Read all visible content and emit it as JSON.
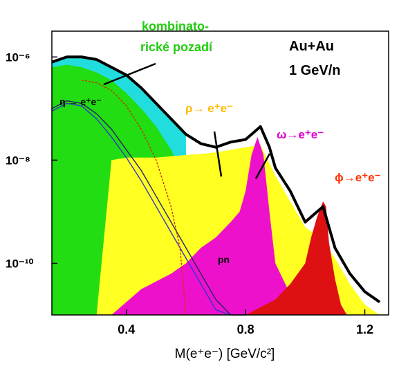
{
  "chart_data": {
    "type": "area",
    "xlabel": "M(e⁺e⁻) [GeV/c²]",
    "xlim": [
      0.15,
      1.28
    ],
    "ylim_log10": [
      -11,
      -5.5
    ],
    "x_ticks": [
      {
        "value": 0.4,
        "label": "0.4"
      },
      {
        "value": 0.8,
        "label": "0.8"
      },
      {
        "value": 1.2,
        "label": "1.2"
      }
    ],
    "y_ticks": [
      {
        "value": -6,
        "label": "10⁻⁶"
      },
      {
        "value": -8,
        "label": "10⁻⁸"
      },
      {
        "value": -10,
        "label": "10⁻¹⁰"
      }
    ],
    "annotations": {
      "background_l1": "kombinato-",
      "background_l2": "rické pozadí",
      "system_l1": "Au+Au",
      "system_l2": "1 GeV/n",
      "eta": "η → e⁺e⁻",
      "rho": "ρ→ e⁺e⁻",
      "omega": "ω→e⁺e⁻",
      "phi": "ϕ→e⁺e⁻",
      "pn": "pn"
    },
    "colors": {
      "combinatorial": "#22dd11",
      "cyan_band": "#22dddd",
      "rho": "#ffff22",
      "omega": "#ee11cc",
      "phi": "#dd1111",
      "pn": "#ff9933",
      "total": "#000000",
      "background_label": "#22cc11",
      "rho_label": "#ffbb00",
      "omega_label": "#dd00cc",
      "phi_label": "#ff3300"
    },
    "series": [
      {
        "key": "total",
        "x": [
          0.15,
          0.2,
          0.25,
          0.3,
          0.35,
          0.4,
          0.45,
          0.5,
          0.55,
          0.6,
          0.65,
          0.7,
          0.75,
          0.8,
          0.83,
          0.85,
          0.88,
          0.9,
          0.95,
          1.0,
          1.04,
          1.06,
          1.08,
          1.1,
          1.15,
          1.2,
          1.25
        ],
        "log10y": [
          -6.1,
          -6.0,
          -6.0,
          -6.05,
          -6.2,
          -6.35,
          -6.6,
          -6.9,
          -7.2,
          -7.5,
          -7.68,
          -7.75,
          -7.65,
          -7.6,
          -7.45,
          -7.35,
          -7.75,
          -8.15,
          -8.6,
          -9.2,
          -9.0,
          -8.9,
          -9.3,
          -9.7,
          -10.2,
          -10.55,
          -10.75
        ]
      },
      {
        "key": "combinatorial",
        "x": [
          0.15,
          0.2,
          0.25,
          0.3,
          0.35,
          0.4,
          0.45,
          0.5,
          0.55,
          0.6,
          0.65,
          0.7,
          0.75,
          0.8,
          0.85,
          0.9,
          1.0,
          1.1,
          1.25
        ],
        "log10y": [
          -6.2,
          -6.15,
          -6.2,
          -6.3,
          -6.45,
          -6.7,
          -7.0,
          -7.35,
          -7.8,
          -8.4,
          -9.0,
          -9.6,
          -10.1,
          -10.6,
          -11,
          -11,
          -11,
          -11,
          -11
        ]
      },
      {
        "key": "cyan_band",
        "x": [
          0.15,
          0.2,
          0.25,
          0.3,
          0.35,
          0.4,
          0.45,
          0.5,
          0.55,
          0.6
        ],
        "log10y": [
          -6.1,
          -6.0,
          -6.0,
          -6.05,
          -6.2,
          -6.35,
          -6.6,
          -6.9,
          -7.2,
          -7.5
        ]
      },
      {
        "key": "rho",
        "x": [
          0.15,
          0.3,
          0.35,
          0.4,
          0.5,
          0.6,
          0.65,
          0.7,
          0.75,
          0.8,
          0.85,
          0.9,
          0.95,
          1.0,
          1.05,
          1.1,
          1.15,
          1.2,
          1.25
        ],
        "log10y": [
          -11,
          -11,
          -8.0,
          -7.95,
          -7.95,
          -7.9,
          -7.88,
          -7.85,
          -7.8,
          -7.75,
          -7.7,
          -8.3,
          -8.8,
          -9.3,
          -9.5,
          -9.9,
          -10.4,
          -10.8,
          -11
        ]
      },
      {
        "key": "omega",
        "x": [
          0.15,
          0.35,
          0.45,
          0.55,
          0.6,
          0.65,
          0.7,
          0.75,
          0.78,
          0.8,
          0.82,
          0.84,
          0.86,
          0.88,
          0.9,
          0.95,
          1.0,
          1.05,
          1.1
        ],
        "log10y": [
          -11,
          -11,
          -10.5,
          -10.2,
          -10.0,
          -9.7,
          -9.5,
          -9.2,
          -9.0,
          -8.6,
          -7.9,
          -7.55,
          -7.9,
          -9.0,
          -10.0,
          -10.6,
          -10.9,
          -11,
          -11
        ]
      },
      {
        "key": "phi",
        "x": [
          0.8,
          0.9,
          0.95,
          1.0,
          1.02,
          1.04,
          1.06,
          1.07,
          1.08,
          1.1,
          1.12,
          1.14
        ],
        "log10y": [
          -11,
          -10.7,
          -10.4,
          -10.0,
          -9.5,
          -9.1,
          -8.8,
          -8.9,
          -9.6,
          -10.3,
          -10.8,
          -11
        ]
      },
      {
        "key": "pn",
        "x": [
          0.4,
          0.5,
          0.6,
          0.7,
          0.8,
          0.9,
          1.0,
          1.1
        ],
        "log10y": [
          -11,
          -10.9,
          -10.6,
          -10.4,
          -10.5,
          -10.8,
          -11,
          -11
        ]
      }
    ],
    "curves": [
      {
        "key": "eta_curve",
        "color": "#222266",
        "x": [
          0.15,
          0.2,
          0.25,
          0.3,
          0.35,
          0.4,
          0.45,
          0.5,
          0.55,
          0.6,
          0.65,
          0.7,
          0.75,
          0.8
        ],
        "log10y": [
          -7.0,
          -6.85,
          -6.9,
          -7.1,
          -7.4,
          -7.8,
          -8.2,
          -8.7,
          -9.2,
          -9.7,
          -10.2,
          -10.7,
          -11.1,
          -11.5
        ]
      },
      {
        "key": "eta_curve_2",
        "color": "#3333cc",
        "x": [
          0.15,
          0.2,
          0.25,
          0.3,
          0.35,
          0.4,
          0.45,
          0.5,
          0.55,
          0.6,
          0.65,
          0.7,
          0.75
        ],
        "log10y": [
          -7.05,
          -6.9,
          -6.95,
          -7.2,
          -7.55,
          -7.95,
          -8.4,
          -8.9,
          -9.4,
          -9.9,
          -10.4,
          -10.9,
          -11.3
        ]
      },
      {
        "key": "rho_dashed",
        "color": "#cc3300",
        "x": [
          0.25,
          0.3,
          0.35,
          0.4,
          0.45,
          0.5,
          0.55,
          0.58,
          0.6
        ],
        "log10y": [
          -6.45,
          -6.5,
          -6.65,
          -6.95,
          -7.4,
          -8.0,
          -8.9,
          -9.7,
          -11
        ]
      }
    ]
  }
}
